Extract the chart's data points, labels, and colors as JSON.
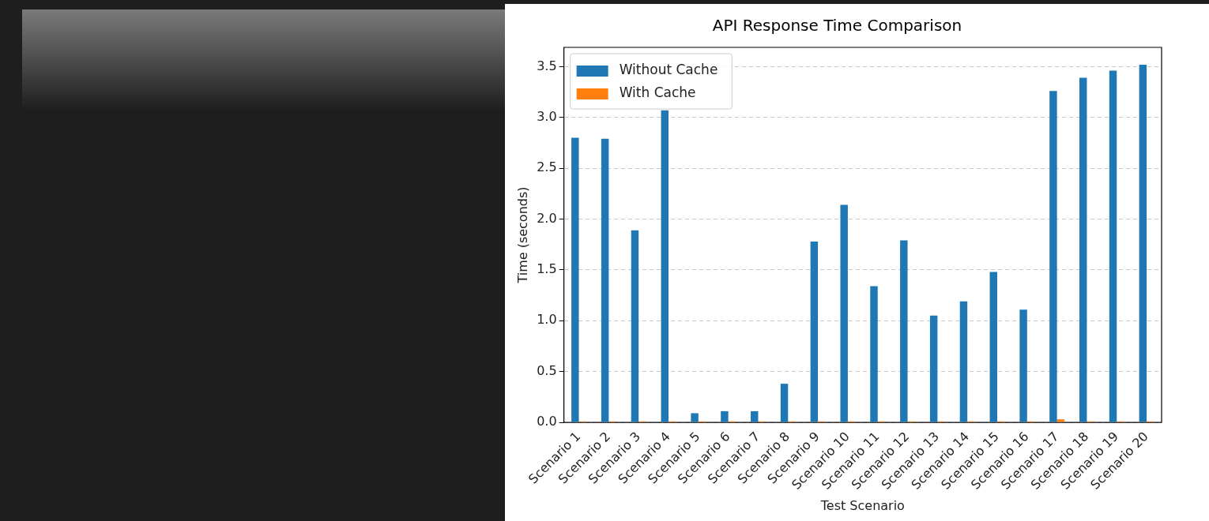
{
  "chart_data": {
    "type": "bar",
    "title": "API Response Time Comparison",
    "xlabel": "Test Scenario",
    "ylabel": "Time (seconds)",
    "categories": [
      "Scenario 1",
      "Scenario 2",
      "Scenario 3",
      "Scenario 4",
      "Scenario 5",
      "Scenario 6",
      "Scenario 7",
      "Scenario 8",
      "Scenario 9",
      "Scenario 10",
      "Scenario 11",
      "Scenario 12",
      "Scenario 13",
      "Scenario 14",
      "Scenario 15",
      "Scenario 16",
      "Scenario 17",
      "Scenario 18",
      "Scenario 19",
      "Scenario 20"
    ],
    "series": [
      {
        "name": "Without Cache",
        "color": "#1f77b4",
        "values": [
          2.8,
          2.79,
          1.89,
          3.07,
          0.09,
          0.11,
          0.11,
          0.38,
          1.78,
          2.14,
          1.34,
          1.79,
          1.05,
          1.19,
          1.48,
          1.11,
          3.26,
          3.39,
          3.46,
          3.52
        ]
      },
      {
        "name": "With Cache",
        "color": "#ff7f0e",
        "values": [
          0.01,
          0.01,
          0.01,
          0.01,
          0.01,
          0.01,
          0.01,
          0.01,
          0.01,
          0.01,
          0.01,
          0.01,
          0.01,
          0.01,
          0.01,
          0.01,
          0.03,
          0.01,
          0.01,
          0.01
        ]
      }
    ],
    "ylim": [
      0,
      3.69
    ],
    "yticks": [
      {
        "value": 0,
        "label": "0.0"
      },
      0.5,
      {
        "value": 1,
        "label": "1.0"
      },
      1.5,
      {
        "value": 2,
        "label": "2.0"
      },
      2.5,
      {
        "value": 3,
        "label": "3.0"
      },
      3.5
    ],
    "grid": "y",
    "legend": "top left"
  }
}
